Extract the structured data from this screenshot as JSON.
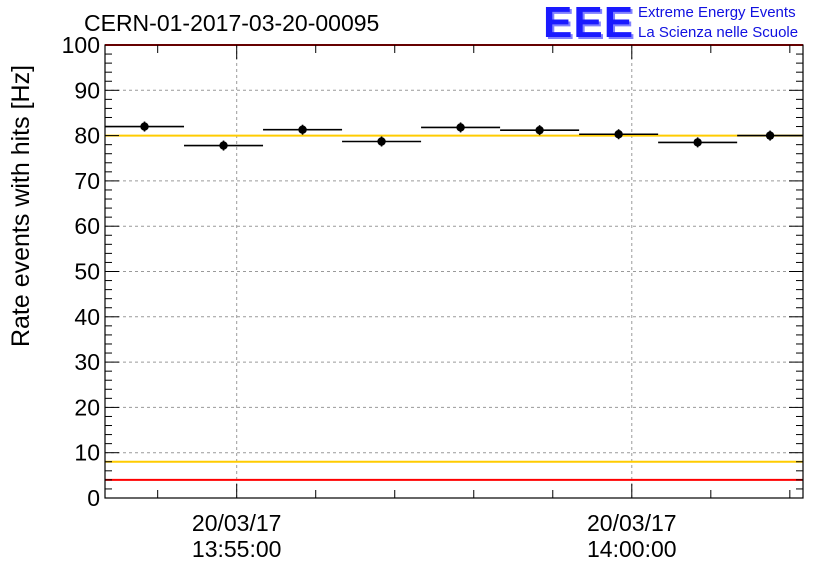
{
  "header": {
    "title": "CERN-01-2017-03-20-00095",
    "logo": {
      "mark": "EEE",
      "line1": "Extreme Energy Events",
      "line2": "La Scienza nelle Scuole"
    }
  },
  "chart_data": {
    "type": "scatter",
    "title": "CERN-01-2017-03-20-00095",
    "xlabel": "",
    "ylabel": "Rate events with hits [Hz]",
    "ylim": [
      0,
      100
    ],
    "y_ticks": [
      0,
      10,
      20,
      30,
      40,
      50,
      60,
      70,
      80,
      90,
      100
    ],
    "x_time_range": [
      "13:53:20",
      "14:02:10"
    ],
    "x_ticks": [
      {
        "time": "13:55:00",
        "date": "20/03/17",
        "label": "13:55:00"
      },
      {
        "time": "14:00:00",
        "date": "20/03/17",
        "label": "14:00:00"
      }
    ],
    "grid": true,
    "points": [
      {
        "x_start": "13:53:20",
        "x_end": "13:54:20",
        "y": 82.0
      },
      {
        "x_start": "13:54:20",
        "x_end": "13:55:20",
        "y": 77.8
      },
      {
        "x_start": "13:55:20",
        "x_end": "13:56:20",
        "y": 81.3
      },
      {
        "x_start": "13:56:20",
        "x_end": "13:57:20",
        "y": 78.7
      },
      {
        "x_start": "13:57:20",
        "x_end": "13:58:20",
        "y": 81.8
      },
      {
        "x_start": "13:58:20",
        "x_end": "13:59:20",
        "y": 81.2
      },
      {
        "x_start": "13:59:20",
        "x_end": "14:00:20",
        "y": 80.3
      },
      {
        "x_start": "14:00:20",
        "x_end": "14:01:20",
        "y": 78.5
      },
      {
        "x_start": "14:01:20",
        "x_end": "14:02:10",
        "y": 80.0
      }
    ],
    "reference_lines": [
      {
        "y": 100,
        "color": "#ff0000"
      },
      {
        "y": 4,
        "color": "#ff0000"
      },
      {
        "y": 80,
        "color": "#ffcc00"
      },
      {
        "y": 8,
        "color": "#ffcc00"
      }
    ],
    "marker_color": "#000000"
  }
}
